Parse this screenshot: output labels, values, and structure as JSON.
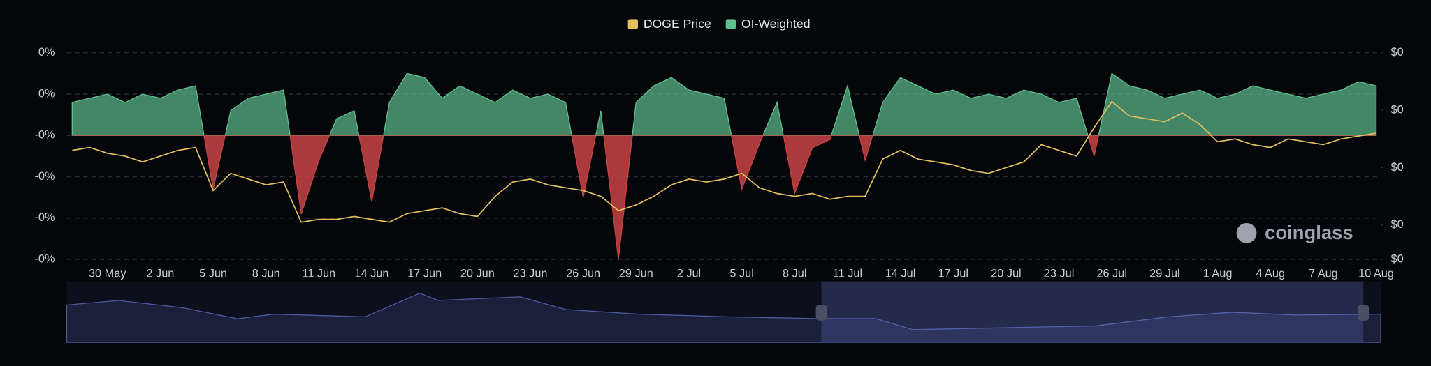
{
  "chart_data": {
    "type": "area-line",
    "categories": [
      null,
      null,
      "30 May",
      null,
      null,
      "2 Jun",
      null,
      null,
      "5 Jun",
      null,
      null,
      "8 Jun",
      null,
      null,
      "11 Jun",
      null,
      null,
      "14 Jun",
      null,
      null,
      "17 Jun",
      null,
      null,
      "20 Jun",
      null,
      null,
      "23 Jun",
      null,
      null,
      "26 Jun",
      null,
      null,
      "29 Jun",
      null,
      null,
      "2 Jul",
      null,
      null,
      "5 Jul",
      null,
      null,
      "8 Jul",
      null,
      null,
      "11 Jul",
      null,
      null,
      "14 Jul",
      null,
      null,
      "17 Jul",
      null,
      null,
      "20 Jul",
      null,
      null,
      "23 Jul",
      null,
      null,
      "26 Jul",
      null,
      null,
      "29 Jul",
      null,
      null,
      "1 Aug",
      null,
      null,
      "4 Aug",
      null,
      null,
      "7 Aug",
      null,
      null,
      "10 Aug"
    ],
    "series": [
      {
        "name": "DOGE Price",
        "color": "#e3c05f",
        "axis": "y2",
        "values": [
          0.166,
          0.167,
          0.165,
          0.164,
          0.162,
          0.164,
          0.166,
          0.167,
          0.152,
          0.158,
          0.156,
          0.154,
          0.155,
          0.141,
          0.142,
          0.142,
          0.143,
          0.142,
          0.141,
          0.144,
          0.145,
          0.146,
          0.144,
          0.143,
          0.15,
          0.155,
          0.156,
          0.154,
          0.153,
          0.152,
          0.15,
          0.145,
          0.147,
          0.15,
          0.154,
          0.156,
          0.155,
          0.156,
          0.158,
          0.153,
          0.151,
          0.15,
          0.151,
          0.149,
          0.15,
          0.15,
          0.163,
          0.166,
          0.163,
          0.162,
          0.161,
          0.159,
          0.158,
          0.16,
          0.162,
          0.168,
          0.166,
          0.164,
          0.174,
          0.183,
          0.178,
          0.177,
          0.176,
          0.179,
          0.175,
          0.169,
          0.17,
          0.168,
          0.167,
          0.17,
          0.169,
          0.168,
          0.17,
          0.171,
          0.172
        ]
      },
      {
        "name": "OI-Weighted",
        "color": "#5fbf8f",
        "negative_color": "#c84444",
        "values": [
          0.008,
          0.009,
          0.01,
          0.008,
          0.01,
          0.009,
          0.011,
          0.012,
          -0.013,
          0.006,
          0.009,
          0.01,
          0.011,
          -0.019,
          -0.006,
          0.004,
          0.006,
          -0.016,
          0.008,
          0.015,
          0.014,
          0.009,
          0.012,
          0.01,
          0.008,
          0.011,
          0.009,
          0.01,
          0.008,
          -0.015,
          0.006,
          -0.03,
          0.008,
          0.012,
          0.014,
          0.011,
          0.01,
          0.009,
          -0.013,
          -0.002,
          0.008,
          -0.014,
          -0.003,
          -0.001,
          0.012,
          -0.006,
          0.008,
          0.014,
          0.012,
          0.01,
          0.011,
          0.009,
          0.01,
          0.009,
          0.011,
          0.01,
          0.008,
          0.009,
          -0.005,
          0.015,
          0.012,
          0.011,
          0.009,
          0.01,
          0.011,
          0.009,
          0.01,
          0.012,
          0.011,
          0.01,
          0.009,
          0.01,
          0.011,
          0.013,
          0.012
        ]
      }
    ],
    "ylim": [
      -0.03,
      0.02
    ],
    "yticks": [
      {
        "value": 0.02,
        "label": "0%"
      },
      {
        "value": 0.01,
        "label": "0%"
      },
      {
        "value": 0,
        "label": "-0%"
      },
      {
        "value": -0.01,
        "label": "-0%"
      },
      {
        "value": -0.02,
        "label": "-0%"
      },
      {
        "value": -0.03,
        "label": "-0%"
      }
    ],
    "y2lim": [
      0.128,
      0.2
    ],
    "y2ticks": [
      {
        "value": 0.2,
        "label": "$0"
      },
      {
        "value": 0.18,
        "label": "$0"
      },
      {
        "value": 0.16,
        "label": "$0"
      },
      {
        "value": 0.14,
        "label": "$0"
      },
      {
        "value": 0.128,
        "label": "$0"
      }
    ],
    "grid": true,
    "legend": "top",
    "watermark": "coinglass"
  }
}
